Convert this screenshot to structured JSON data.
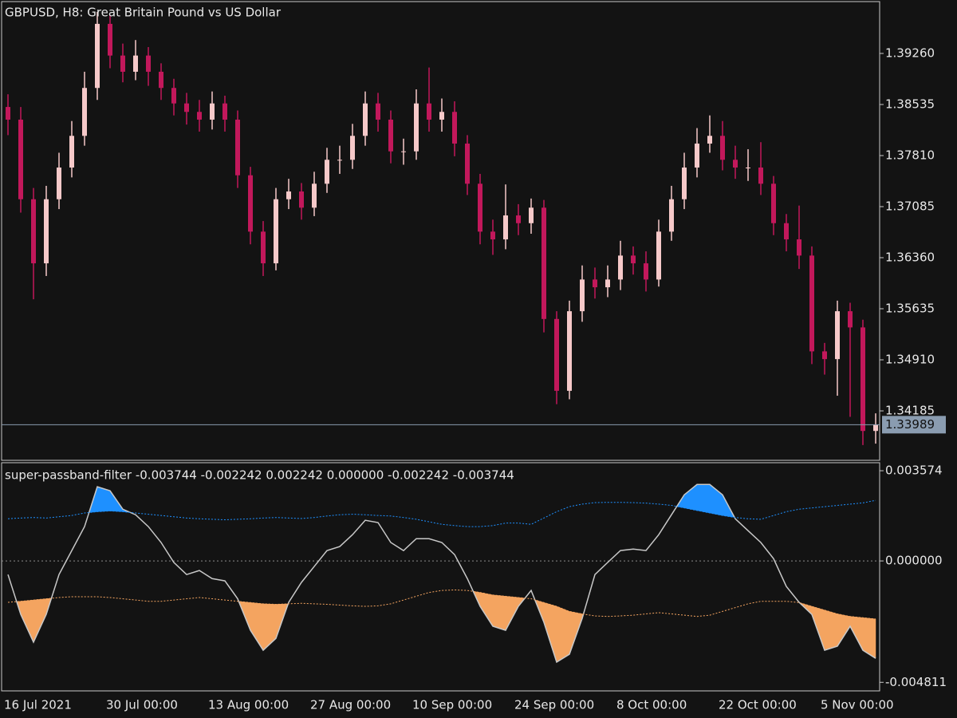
{
  "chart_data": [
    {
      "type": "candlestick",
      "title": "GBPUSD, H8:  Great Britain Pound vs US Dollar",
      "categories": [
        "16 Jul 2021",
        null,
        null,
        null,
        null,
        null,
        null,
        null,
        "30 Jul 00:00",
        null,
        null,
        null,
        null,
        null,
        null,
        null,
        "13 Aug 00:00",
        null,
        null,
        null,
        null,
        null,
        null,
        null,
        "27 Aug 00:00",
        null,
        null,
        null,
        null,
        null,
        null,
        null,
        "10 Sep 00:00",
        null,
        null,
        null,
        null,
        null,
        null,
        null,
        "24 Sep 00:00",
        null,
        null,
        null,
        null,
        null,
        null,
        null,
        "8 Oct 00:00",
        null,
        null,
        null,
        null,
        null,
        null,
        null,
        "22 Oct 00:00",
        null,
        null,
        null,
        null,
        null,
        null,
        null,
        "5 Nov 00:00",
        null,
        null,
        null,
        null
      ],
      "open": [
        1.385,
        1.3832,
        1.3719,
        1.3628,
        1.3719,
        1.3764,
        1.3809,
        1.3877,
        1.3968,
        1.3923,
        1.39,
        1.3923,
        1.39,
        1.3877,
        1.3855,
        1.3843,
        1.3832,
        1.3855,
        1.3832,
        1.3753,
        1.3673,
        1.3628,
        1.3719,
        1.373,
        1.3707,
        1.3741,
        1.3775,
        1.3775,
        1.3809,
        1.3855,
        1.3832,
        1.3787,
        1.3787,
        1.3855,
        1.3832,
        1.3843,
        1.3798,
        1.3741,
        1.3673,
        1.3662,
        1.3696,
        1.3685,
        1.3707,
        1.3549,
        1.3447,
        1.356,
        1.3605,
        1.3594,
        1.3605,
        1.3639,
        1.3628,
        1.3605,
        1.3673,
        1.3719,
        1.3764,
        1.3798,
        1.3809,
        1.3775,
        1.3764,
        1.3764,
        1.3741,
        1.3685,
        1.3662,
        1.3639,
        1.3503,
        1.3492,
        1.356,
        1.3537,
        1.339
      ],
      "high": [
        1.3868,
        1.385,
        1.3735,
        1.3738,
        1.3785,
        1.383,
        1.39,
        1.3985,
        1.398,
        1.394,
        1.3945,
        1.3935,
        1.3912,
        1.389,
        1.387,
        1.386,
        1.3872,
        1.3866,
        1.3845,
        1.3765,
        1.3688,
        1.3735,
        1.3748,
        1.3742,
        1.3758,
        1.3792,
        1.3795,
        1.3826,
        1.3872,
        1.387,
        1.3845,
        1.3805,
        1.3875,
        1.3906,
        1.3862,
        1.3858,
        1.381,
        1.3755,
        1.369,
        1.374,
        1.3712,
        1.372,
        1.3718,
        1.356,
        1.3575,
        1.3625,
        1.3622,
        1.3625,
        1.366,
        1.3652,
        1.3645,
        1.369,
        1.3738,
        1.3785,
        1.382,
        1.3838,
        1.383,
        1.3795,
        1.379,
        1.38,
        1.3752,
        1.3698,
        1.371,
        1.3652,
        1.3515,
        1.3575,
        1.3572,
        1.3548,
        1.3415
      ],
      "low": [
        1.381,
        1.37,
        1.3577,
        1.361,
        1.3705,
        1.375,
        1.3795,
        1.386,
        1.3905,
        1.3885,
        1.3888,
        1.388,
        1.386,
        1.3838,
        1.3825,
        1.3815,
        1.3818,
        1.3815,
        1.3735,
        1.3655,
        1.361,
        1.3618,
        1.3705,
        1.369,
        1.3695,
        1.3728,
        1.3755,
        1.3762,
        1.3795,
        1.3815,
        1.377,
        1.3768,
        1.3775,
        1.3815,
        1.3815,
        1.378,
        1.3725,
        1.3655,
        1.364,
        1.3648,
        1.3668,
        1.367,
        1.353,
        1.3428,
        1.3435,
        1.3545,
        1.3578,
        1.358,
        1.359,
        1.3612,
        1.3588,
        1.3595,
        1.366,
        1.3705,
        1.375,
        1.3785,
        1.376,
        1.3748,
        1.3745,
        1.3725,
        1.3668,
        1.3645,
        1.362,
        1.3485,
        1.347,
        1.344,
        1.341,
        1.337,
        1.3372
      ],
      "close": [
        1.3832,
        1.3719,
        1.3628,
        1.3719,
        1.3764,
        1.3809,
        1.3877,
        1.3968,
        1.3923,
        1.39,
        1.3923,
        1.39,
        1.3877,
        1.3855,
        1.3843,
        1.3832,
        1.3855,
        1.3832,
        1.3753,
        1.3673,
        1.3628,
        1.3719,
        1.373,
        1.3707,
        1.3741,
        1.3775,
        1.3775,
        1.3809,
        1.3855,
        1.3832,
        1.3787,
        1.3787,
        1.3855,
        1.3832,
        1.3843,
        1.3798,
        1.3741,
        1.3673,
        1.3662,
        1.3696,
        1.3685,
        1.3707,
        1.3549,
        1.3447,
        1.356,
        1.3605,
        1.3594,
        1.3605,
        1.3639,
        1.3628,
        1.3605,
        1.3673,
        1.3719,
        1.3764,
        1.3798,
        1.3809,
        1.3775,
        1.3764,
        1.3764,
        1.3741,
        1.3685,
        1.3662,
        1.3639,
        1.3503,
        1.3492,
        1.356,
        1.3537,
        1.339,
        1.3399
      ],
      "up_color": "#f6c9c9",
      "down_color": "#c2185b",
      "ylim": [
        1.33483,
        1.39996
      ],
      "yticks": [
        {
          "value": 1.3926,
          "label": "1.39260"
        },
        1.38535,
        {
          "value": 1.3781,
          "label": "1.37810"
        },
        1.37085,
        {
          "value": 1.3636,
          "label": "1.36360"
        },
        1.35635,
        {
          "value": 1.3491,
          "label": "1.34910"
        },
        1.34185
      ],
      "last_price": 1.33989,
      "last_price_color": "#8a9cb0",
      "grid": false
    },
    {
      "type": "band",
      "title": "super-passband-filter -0.003744 -0.002242 0.002242 0.000000 -0.002242 -0.003744",
      "series": [
        {
          "color": "#c8c8c8",
          "values": [
            -0.00054,
            -0.00212,
            -0.00322,
            -0.00212,
            -0.00054,
            0.00041,
            0.00136,
            0.00294,
            0.00278,
            0.00205,
            0.00183,
            0.00136,
            0.00073,
            -6e-05,
            -0.00054,
            -0.00038,
            -0.0007,
            -0.00079,
            -0.0015,
            -0.00275,
            -0.00354,
            -0.00307,
            -0.00164,
            -0.00085,
            -0.00022,
            0.00041,
            0.00057,
            0.00104,
            0.00161,
            0.00152,
            0.00073,
            0.00041,
            0.00088,
            0.00088,
            0.00073,
            0.00025,
            -0.0007,
            -0.0018,
            -0.00259,
            -0.00275,
            -0.0018,
            -0.00117,
            -0.00243,
            -0.00401,
            -0.0037,
            -0.00228,
            -0.00054,
            -6e-05,
            0.00041,
            0.00047,
            0.00041,
            0.00104,
            0.00183,
            0.00262,
            0.00303,
            0.00303,
            0.00262,
            0.00167,
            0.0012,
            0.00073,
            9e-05,
            -0.00101,
            -0.00164,
            -0.00212,
            -0.00354,
            -0.00338,
            -0.00259,
            -0.00354,
            -0.00386
          ]
        },
        {
          "color": "#1e90ff",
          "fill_color": "#1e90ff",
          "values": [
            0.00167,
            0.0017,
            0.00172,
            0.0017,
            0.00175,
            0.0018,
            0.0019,
            0.00195,
            0.00198,
            0.00195,
            0.0019,
            0.00185,
            0.0018,
            0.00175,
            0.0017,
            0.00167,
            0.00165,
            0.00163,
            0.00165,
            0.00167,
            0.0017,
            0.00172,
            0.0017,
            0.00168,
            0.00172,
            0.00178,
            0.00183,
            0.00185,
            0.00183,
            0.0018,
            0.00178,
            0.00172,
            0.00165,
            0.00155,
            0.00145,
            0.0014,
            0.00136,
            0.00136,
            0.0014,
            0.0015,
            0.0015,
            0.00145,
            0.0017,
            0.00195,
            0.00215,
            0.00225,
            0.00231,
            0.00232,
            0.00232,
            0.00231,
            0.00229,
            0.00225,
            0.0022,
            0.0021,
            0.002,
            0.0019,
            0.0018,
            0.00172,
            0.00167,
            0.00165,
            0.0018,
            0.00195,
            0.00205,
            0.0021,
            0.00215,
            0.0022,
            0.00225,
            0.0023,
            0.0024
          ]
        },
        {
          "color": "#f4a460",
          "fill_color": "#f4a460",
          "values": [
            -0.00164,
            -0.0016,
            -0.00155,
            -0.0015,
            -0.00145,
            -0.00142,
            -0.00142,
            -0.00142,
            -0.00145,
            -0.0015,
            -0.00155,
            -0.0016,
            -0.0016,
            -0.00155,
            -0.0015,
            -0.00145,
            -0.0015,
            -0.00155,
            -0.0016,
            -0.00165,
            -0.0017,
            -0.00172,
            -0.0017,
            -0.00168,
            -0.0017,
            -0.00172,
            -0.00175,
            -0.00178,
            -0.0018,
            -0.00178,
            -0.0017,
            -0.00155,
            -0.0014,
            -0.00125,
            -0.00117,
            -0.00115,
            -0.00117,
            -0.00125,
            -0.00135,
            -0.0014,
            -0.00145,
            -0.0015,
            -0.00165,
            -0.0018,
            -0.002,
            -0.0021,
            -0.00218,
            -0.0022,
            -0.00218,
            -0.00215,
            -0.0021,
            -0.00205,
            -0.0021,
            -0.00215,
            -0.0022,
            -0.00215,
            -0.002,
            -0.00185,
            -0.0017,
            -0.0016,
            -0.0016,
            -0.0016,
            -0.00165,
            -0.0018,
            -0.00195,
            -0.0021,
            -0.0022,
            -0.00225,
            -0.0023
          ]
        }
      ],
      "level": 0,
      "level_color": "#8a8a8a",
      "ylim": [
        -0.00515,
        0.00386
      ],
      "yticks": [
        0.003574,
        {
          "value": 0,
          "label": "0.000000"
        },
        -0.004811
      ],
      "grid": false
    }
  ]
}
